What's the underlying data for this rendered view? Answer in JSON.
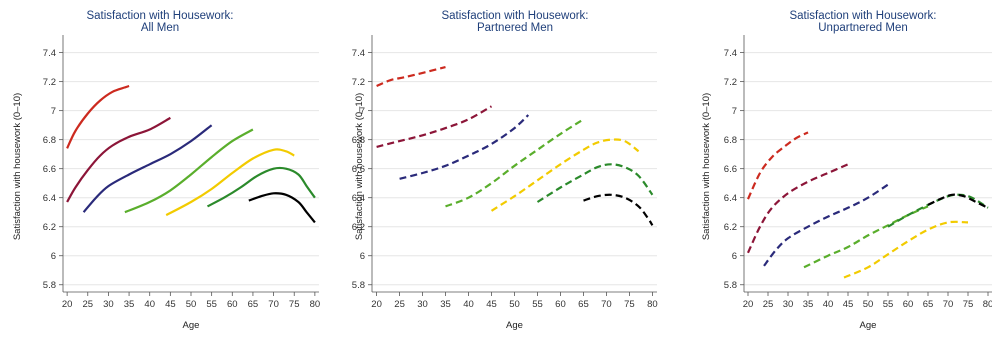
{
  "figure": {
    "colors": {
      "20": "#cc2a1f",
      "25": "#8c1538",
      "35": "#2a2a7a",
      "45": "#5aae2c",
      "55": "#f2cb00",
      "65": "#2b8a2b",
      "70": "#000000"
    }
  },
  "chart_data": [
    {
      "type": "line",
      "title": "Satisfaction with Housework:",
      "subtitle": "All Men",
      "xlabel": "Age",
      "ylabel": "Satisfaction with housework (0–10)",
      "xlim": [
        19,
        81
      ],
      "ylim": [
        5.75,
        7.48
      ],
      "x_ticks": [
        20,
        25,
        30,
        35,
        40,
        45,
        50,
        55,
        60,
        65,
        70,
        75,
        80
      ],
      "y_ticks": [
        5.8,
        6,
        6.2,
        6.4,
        6.6,
        6.8,
        7,
        7.2,
        7.4
      ],
      "y_tick_labels": [
        "5.8",
        "6",
        "6.2",
        "6.4",
        "6.6",
        "6.8",
        "7",
        "7.2",
        "7.4"
      ],
      "grid": "horizontal",
      "line_style": "solid",
      "series": [
        {
          "color_key": "20",
          "points": [
            [
              20,
              6.74
            ],
            [
              22,
              6.86
            ],
            [
              25,
              6.98
            ],
            [
              28,
              7.07
            ],
            [
              31,
              7.13
            ],
            [
              34,
              7.16
            ],
            [
              35,
              7.17
            ]
          ]
        },
        {
          "color_key": "25",
          "points": [
            [
              20,
              6.37
            ],
            [
              22,
              6.47
            ],
            [
              25,
              6.59
            ],
            [
              28,
              6.69
            ],
            [
              31,
              6.76
            ],
            [
              35,
              6.82
            ],
            [
              40,
              6.87
            ],
            [
              45,
              6.95
            ]
          ]
        },
        {
          "color_key": "35",
          "points": [
            [
              24,
              6.3
            ],
            [
              27,
              6.4
            ],
            [
              30,
              6.48
            ],
            [
              35,
              6.56
            ],
            [
              40,
              6.63
            ],
            [
              45,
              6.7
            ],
            [
              50,
              6.79
            ],
            [
              55,
              6.9
            ]
          ]
        },
        {
          "color_key": "45",
          "points": [
            [
              34,
              6.3
            ],
            [
              40,
              6.37
            ],
            [
              45,
              6.45
            ],
            [
              50,
              6.56
            ],
            [
              55,
              6.68
            ],
            [
              60,
              6.79
            ],
            [
              65,
              6.87
            ]
          ]
        },
        {
          "color_key": "55",
          "points": [
            [
              44,
              6.28
            ],
            [
              50,
              6.37
            ],
            [
              55,
              6.46
            ],
            [
              60,
              6.57
            ],
            [
              65,
              6.67
            ],
            [
              70,
              6.73
            ],
            [
              73,
              6.72
            ],
            [
              75,
              6.69
            ]
          ]
        },
        {
          "color_key": "65",
          "points": [
            [
              54,
              6.34
            ],
            [
              58,
              6.4
            ],
            [
              62,
              6.47
            ],
            [
              66,
              6.55
            ],
            [
              70,
              6.6
            ],
            [
              73,
              6.6
            ],
            [
              76,
              6.56
            ],
            [
              78,
              6.48
            ],
            [
              80,
              6.4
            ]
          ]
        },
        {
          "color_key": "70",
          "points": [
            [
              64,
              6.38
            ],
            [
              67,
              6.41
            ],
            [
              70,
              6.43
            ],
            [
              73,
              6.42
            ],
            [
              76,
              6.37
            ],
            [
              78,
              6.3
            ],
            [
              80,
              6.23
            ]
          ]
        }
      ]
    },
    {
      "type": "line",
      "title": "Satisfaction with Housework:",
      "subtitle": "Partnered Men",
      "xlabel": "Age",
      "ylabel": "Satisfaction with housework (0–10)",
      "xlim": [
        19,
        81
      ],
      "ylim": [
        5.75,
        7.48
      ],
      "x_ticks": [
        20,
        25,
        30,
        35,
        40,
        45,
        50,
        55,
        60,
        65,
        70,
        75,
        80
      ],
      "y_ticks": [
        5.8,
        6,
        6.2,
        6.4,
        6.6,
        6.8,
        7,
        7.2,
        7.4
      ],
      "y_tick_labels": [
        "5.8",
        "6",
        "6.2",
        "6.4",
        "6.6",
        "6.8",
        "7",
        "7.2",
        "7.4"
      ],
      "grid": "horizontal",
      "line_style": "dashed",
      "series": [
        {
          "color_key": "20",
          "points": [
            [
              20,
              7.17
            ],
            [
              23,
              7.21
            ],
            [
              26,
              7.23
            ],
            [
              30,
              7.26
            ],
            [
              35,
              7.3
            ]
          ]
        },
        {
          "color_key": "25",
          "points": [
            [
              20,
              6.75
            ],
            [
              25,
              6.79
            ],
            [
              30,
              6.83
            ],
            [
              35,
              6.88
            ],
            [
              40,
              6.94
            ],
            [
              45,
              7.03
            ]
          ]
        },
        {
          "color_key": "35",
          "points": [
            [
              25,
              6.53
            ],
            [
              30,
              6.57
            ],
            [
              35,
              6.62
            ],
            [
              40,
              6.69
            ],
            [
              45,
              6.77
            ],
            [
              50,
              6.88
            ],
            [
              53,
              6.97
            ]
          ]
        },
        {
          "color_key": "45",
          "points": [
            [
              35,
              6.34
            ],
            [
              40,
              6.4
            ],
            [
              45,
              6.5
            ],
            [
              50,
              6.62
            ],
            [
              55,
              6.73
            ],
            [
              60,
              6.84
            ],
            [
              65,
              6.94
            ]
          ]
        },
        {
          "color_key": "55",
          "points": [
            [
              45,
              6.31
            ],
            [
              50,
              6.41
            ],
            [
              55,
              6.52
            ],
            [
              60,
              6.63
            ],
            [
              65,
              6.73
            ],
            [
              68,
              6.78
            ],
            [
              71,
              6.8
            ],
            [
              74,
              6.79
            ],
            [
              77,
              6.72
            ]
          ]
        },
        {
          "color_key": "65",
          "points": [
            [
              55,
              6.37
            ],
            [
              60,
              6.47
            ],
            [
              65,
              6.56
            ],
            [
              68,
              6.61
            ],
            [
              71,
              6.63
            ],
            [
              74,
              6.61
            ],
            [
              77,
              6.55
            ],
            [
              80,
              6.42
            ]
          ]
        },
        {
          "color_key": "70",
          "points": [
            [
              65,
              6.38
            ],
            [
              68,
              6.41
            ],
            [
              71,
              6.42
            ],
            [
              74,
              6.4
            ],
            [
              77,
              6.34
            ],
            [
              79,
              6.26
            ],
            [
              80,
              6.21
            ]
          ]
        }
      ]
    },
    {
      "type": "line",
      "title": "Satisfaction with Housework:",
      "subtitle": "Unpartnered Men",
      "xlabel": "Age",
      "ylabel": "Satisfaction with housework (0–10)",
      "xlim": [
        19,
        81
      ],
      "ylim": [
        5.75,
        7.48
      ],
      "x_ticks": [
        20,
        25,
        30,
        35,
        40,
        45,
        50,
        55,
        60,
        65,
        70,
        75,
        80
      ],
      "y_ticks": [
        5.8,
        6,
        6.2,
        6.4,
        6.6,
        6.8,
        7,
        7.2,
        7.4
      ],
      "y_tick_labels": [
        "5.8",
        "6",
        "6.2",
        "6.4",
        "6.6",
        "6.8",
        "7",
        "7.2",
        "7.4"
      ],
      "grid": "horizontal",
      "line_style": "dashed",
      "series": [
        {
          "color_key": "20",
          "points": [
            [
              20,
              6.39
            ],
            [
              23,
              6.57
            ],
            [
              26,
              6.68
            ],
            [
              29,
              6.75
            ],
            [
              32,
              6.81
            ],
            [
              35,
              6.85
            ]
          ]
        },
        {
          "color_key": "25",
          "points": [
            [
              20,
              6.02
            ],
            [
              23,
              6.2
            ],
            [
              26,
              6.33
            ],
            [
              30,
              6.43
            ],
            [
              35,
              6.51
            ],
            [
              40,
              6.57
            ],
            [
              45,
              6.63
            ]
          ]
        },
        {
          "color_key": "35",
          "points": [
            [
              24,
              5.93
            ],
            [
              27,
              6.04
            ],
            [
              30,
              6.12
            ],
            [
              35,
              6.2
            ],
            [
              40,
              6.27
            ],
            [
              45,
              6.33
            ],
            [
              50,
              6.4
            ],
            [
              55,
              6.49
            ]
          ]
        },
        {
          "color_key": "45",
          "points": [
            [
              34,
              5.92
            ],
            [
              40,
              6.0
            ],
            [
              45,
              6.06
            ],
            [
              50,
              6.14
            ],
            [
              55,
              6.21
            ],
            [
              60,
              6.28
            ],
            [
              65,
              6.34
            ]
          ]
        },
        {
          "color_key": "55",
          "points": [
            [
              44,
              5.85
            ],
            [
              50,
              5.92
            ],
            [
              55,
              6.01
            ],
            [
              60,
              6.1
            ],
            [
              65,
              6.18
            ],
            [
              70,
              6.23
            ],
            [
              75,
              6.23
            ]
          ]
        },
        {
          "color_key": "65",
          "points": [
            [
              55,
              6.2
            ],
            [
              60,
              6.28
            ],
            [
              65,
              6.35
            ],
            [
              70,
              6.41
            ],
            [
              73,
              6.42
            ],
            [
              76,
              6.4
            ],
            [
              80,
              6.33
            ]
          ]
        },
        {
          "color_key": "70",
          "points": [
            [
              65,
              6.35
            ],
            [
              68,
              6.39
            ],
            [
              71,
              6.42
            ],
            [
              74,
              6.41
            ],
            [
              77,
              6.37
            ],
            [
              80,
              6.33
            ]
          ]
        }
      ]
    }
  ]
}
